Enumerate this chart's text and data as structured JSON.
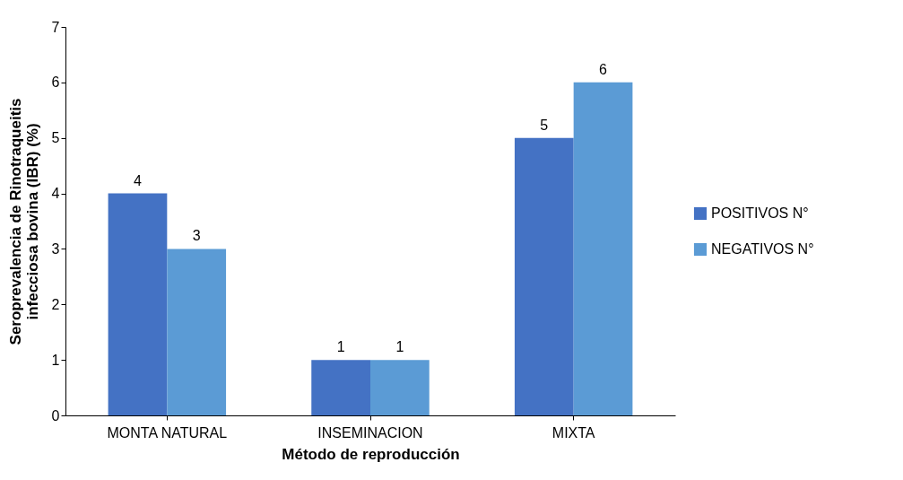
{
  "chart_data": {
    "type": "bar",
    "xlabel": "Método de reproducción",
    "ylabel": "Seroprevalencia de Rinotraqueitis infecciosa bovina (IBR) (%)",
    "categories": [
      "MONTA NATURAL",
      "INSEMINACION",
      "MIXTA"
    ],
    "series": [
      {
        "name": "POSITIVOS  N°",
        "color": "#4472c4",
        "values": [
          4,
          1,
          5
        ]
      },
      {
        "name": "NEGATIVOS  N°",
        "color": "#5b9bd5",
        "values": [
          3,
          1,
          6
        ]
      }
    ],
    "ylim": [
      0,
      7
    ],
    "yticks": [
      0,
      1,
      2,
      3,
      4,
      5,
      6,
      7
    ],
    "grid": false,
    "legend": "right",
    "data_labels": true
  }
}
